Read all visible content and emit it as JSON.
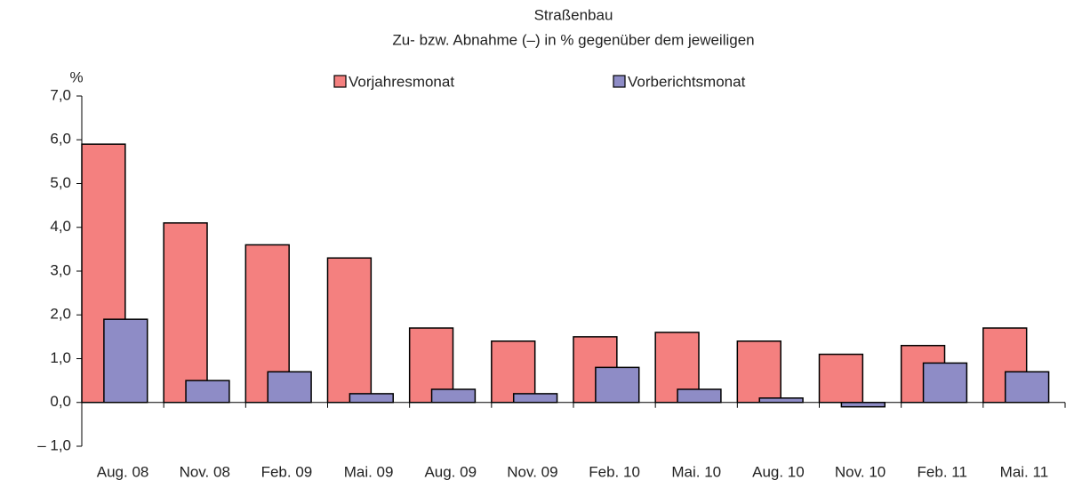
{
  "chart_data": {
    "type": "bar",
    "title": "Straßenbau",
    "subtitle": "Zu- bzw. Abnahme (–) in % gegenüber dem jeweiligen",
    "y_label": "%",
    "categories": [
      "Aug. 08",
      "Nov. 08",
      "Feb. 09",
      "Mai. 09",
      "Aug. 09",
      "Nov. 09",
      "Feb. 10",
      "Mai. 10",
      "Aug. 10",
      "Nov. 10",
      "Feb. 11",
      "Mai. 11"
    ],
    "series": [
      {
        "name": "Vorjahresmonat",
        "color": "#f4807f",
        "values": [
          5.9,
          4.1,
          3.6,
          3.3,
          1.7,
          1.4,
          1.5,
          1.6,
          1.4,
          1.1,
          1.3,
          1.7
        ]
      },
      {
        "name": "Vorberichtsmonat",
        "color": "#8e8cc6",
        "values": [
          1.9,
          0.5,
          0.7,
          0.2,
          0.3,
          0.2,
          0.8,
          0.3,
          0.1,
          -0.1,
          0.9,
          0.7
        ]
      }
    ],
    "ylim": [
      -1,
      7
    ],
    "yticks": [
      {
        "value": -1,
        "label": "– 1,0"
      },
      {
        "value": 0,
        "label": "0,0"
      },
      {
        "value": 1,
        "label": "1,0"
      },
      {
        "value": 2,
        "label": "2,0"
      },
      {
        "value": 3,
        "label": "3,0"
      },
      {
        "value": 4,
        "label": "4,0"
      },
      {
        "value": 5,
        "label": "5,0"
      },
      {
        "value": 6,
        "label": "6,0"
      },
      {
        "value": 7,
        "label": "7,0"
      }
    ],
    "grid": false
  }
}
